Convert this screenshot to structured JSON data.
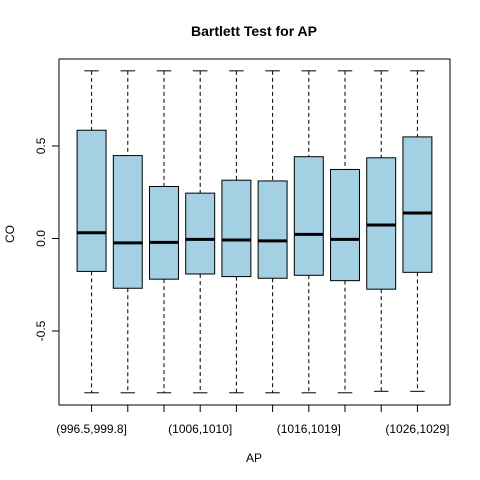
{
  "chart_data": {
    "type": "box",
    "title": "Bartlett Test for AP",
    "xlabel": "AP",
    "ylabel": "CO",
    "ylim": [
      -0.9,
      0.97
    ],
    "yticks": [
      -0.5,
      0.0,
      0.5
    ],
    "ytick_labels": [
      "-0.5",
      "0.0",
      "0.5"
    ],
    "xtick_labels_shown": [
      {
        "index": 0,
        "label": "(996.5,999.8]"
      },
      {
        "index": 3,
        "label": "(1006,1010]"
      },
      {
        "index": 6,
        "label": "(1016,1019]"
      },
      {
        "index": 9,
        "label": "(1026,1029]"
      }
    ],
    "box_color": "#a3d0e2",
    "boxes": [
      {
        "whislo": -0.834,
        "q1": -0.178,
        "med": 0.031,
        "q3": 0.585,
        "whishi": 0.906
      },
      {
        "whislo": -0.834,
        "q1": -0.269,
        "med": -0.024,
        "q3": 0.448,
        "whishi": 0.906
      },
      {
        "whislo": -0.834,
        "q1": -0.22,
        "med": -0.021,
        "q3": 0.281,
        "whishi": 0.906
      },
      {
        "whislo": -0.834,
        "q1": -0.192,
        "med": -0.005,
        "q3": 0.245,
        "whishi": 0.906
      },
      {
        "whislo": -0.834,
        "q1": -0.206,
        "med": -0.008,
        "q3": 0.315,
        "whishi": 0.906
      },
      {
        "whislo": -0.834,
        "q1": -0.215,
        "med": -0.013,
        "q3": 0.311,
        "whishi": 0.906
      },
      {
        "whislo": -0.834,
        "q1": -0.199,
        "med": 0.022,
        "q3": 0.442,
        "whishi": 0.906
      },
      {
        "whislo": -0.834,
        "q1": -0.228,
        "med": -0.005,
        "q3": 0.373,
        "whishi": 0.906
      },
      {
        "whislo": -0.826,
        "q1": -0.274,
        "med": 0.073,
        "q3": 0.436,
        "whishi": 0.906
      },
      {
        "whislo": -0.826,
        "q1": -0.183,
        "med": 0.138,
        "q3": 0.549,
        "whishi": 0.906
      }
    ]
  }
}
